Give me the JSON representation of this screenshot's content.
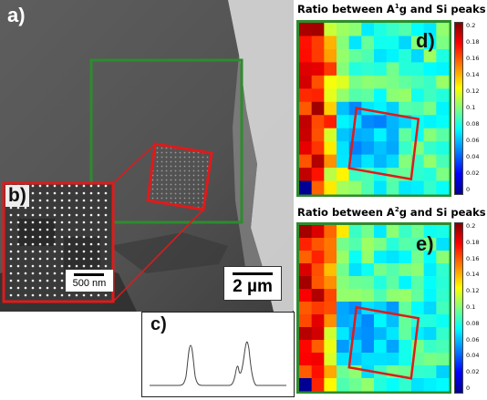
{
  "panels": {
    "a": "a)",
    "b": "b)",
    "c": "c)",
    "d": "d)",
    "e": "e)"
  },
  "scale_bars": {
    "main": "2 µm",
    "inset": "500 nm"
  },
  "map_d": {
    "title_prefix": "Ratio between A",
    "title_sup": "1",
    "title_suffix": "g and Si peaks",
    "colorbar_ticks": [
      "0.2",
      "0.18",
      "0.16",
      "0.14",
      "0.12",
      "0.1",
      "0.08",
      "0.06",
      "0.04",
      "0.02",
      "0"
    ]
  },
  "map_e": {
    "title_prefix": "Ratio between A",
    "title_sup": "2",
    "title_suffix": "g and Si peaks",
    "colorbar_ticks": [
      "0.2",
      "0.18",
      "0.16",
      "0.14",
      "0.12",
      "0.1",
      "0.08",
      "0.06",
      "0.04",
      "0.02",
      "0"
    ]
  },
  "colors": {
    "green_frame": "#2e8b2e",
    "red_frame": "#e01a1a"
  }
}
